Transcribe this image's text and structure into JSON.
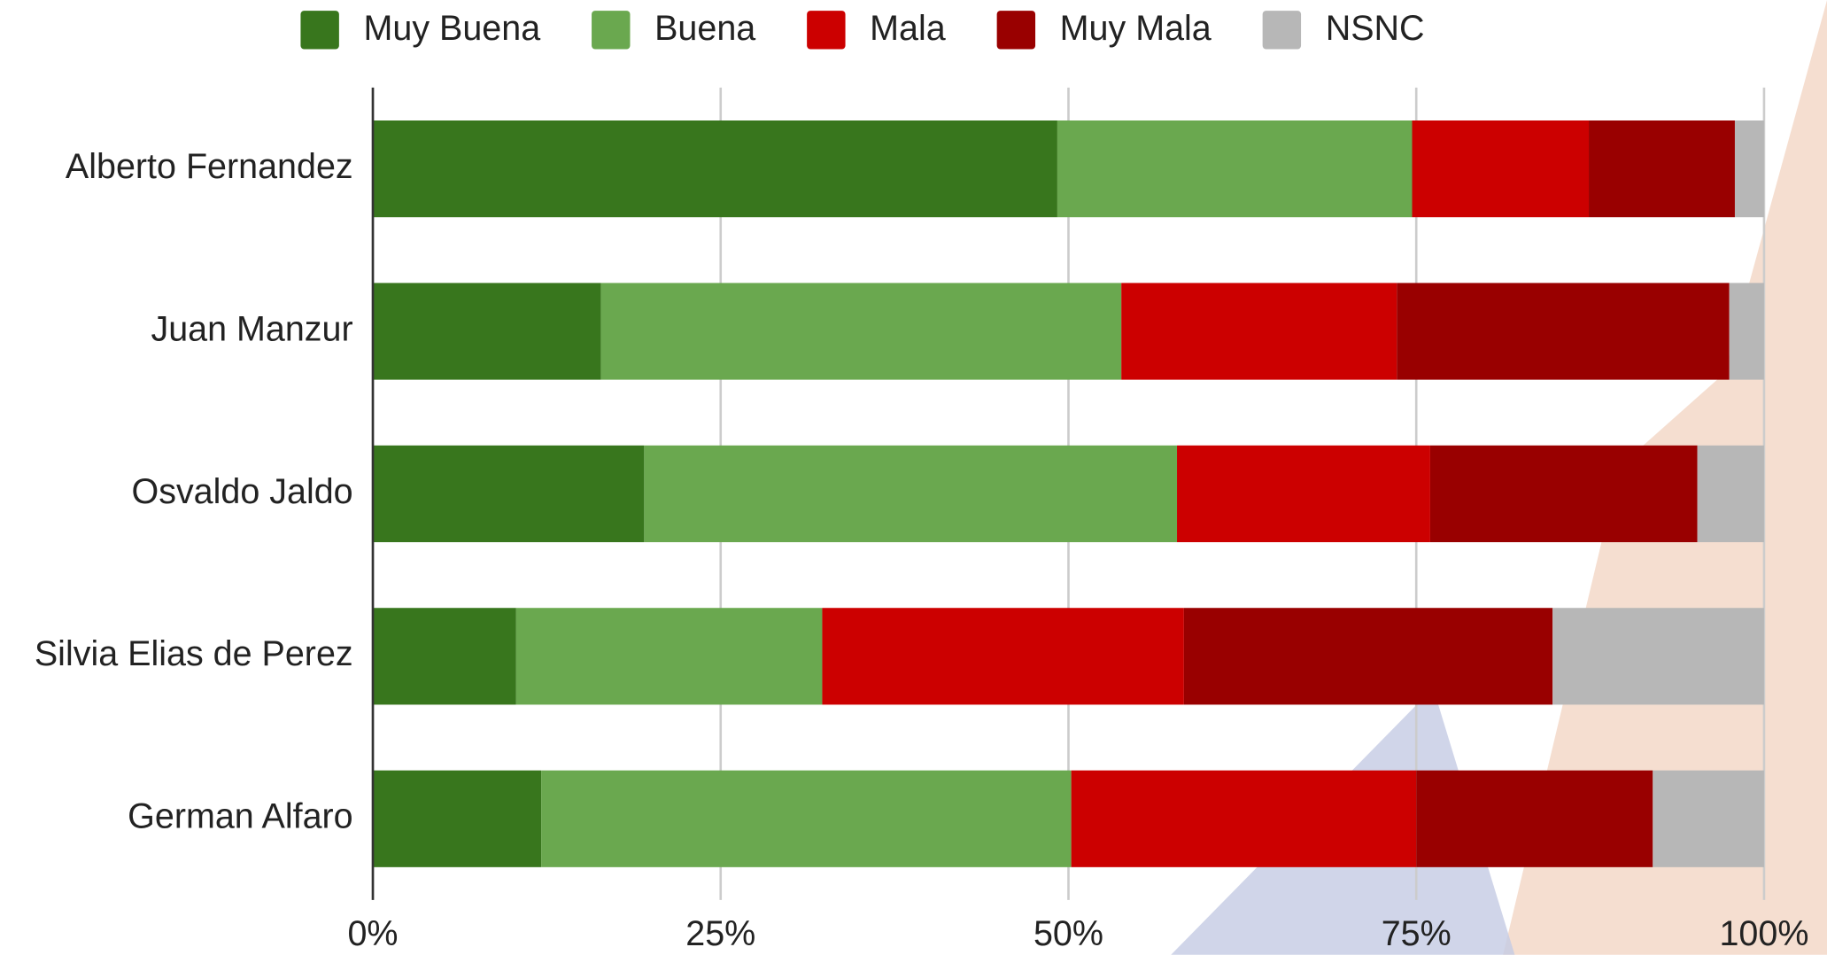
{
  "chart_data": {
    "type": "stacked-bar-horizontal",
    "categories": [
      "Alberto Fernandez",
      "Juan Manzur",
      "Osvaldo Jaldo",
      "Silvia Elias de Perez",
      "German Alfaro"
    ],
    "series": [
      {
        "name": "Muy Buena",
        "color": "#38761d",
        "values": [
          49.2,
          16.4,
          19.5,
          10.3,
          12.1
        ]
      },
      {
        "name": "Buena",
        "color": "#6aa84f",
        "values": [
          25.5,
          37.4,
          38.3,
          22.0,
          38.1
        ]
      },
      {
        "name": "Mala",
        "color": "#cc0000",
        "values": [
          12.7,
          19.8,
          18.2,
          26.0,
          24.8
        ]
      },
      {
        "name": "Muy Mala",
        "color": "#990000",
        "values": [
          10.5,
          23.9,
          19.2,
          26.5,
          17.0
        ]
      },
      {
        "name": "NSNC",
        "color": "#b7b7b7",
        "values": [
          2.1,
          2.5,
          4.8,
          15.2,
          8.0
        ]
      }
    ],
    "xlim": [
      0,
      100
    ],
    "xticks": [
      {
        "value": 0,
        "label": "0%"
      },
      {
        "value": 25,
        "label": "25%"
      },
      {
        "value": 50,
        "label": "50%"
      },
      {
        "value": 75,
        "label": "75%"
      },
      {
        "value": 100,
        "label": "100%"
      }
    ],
    "grid": true,
    "legend": "top"
  }
}
